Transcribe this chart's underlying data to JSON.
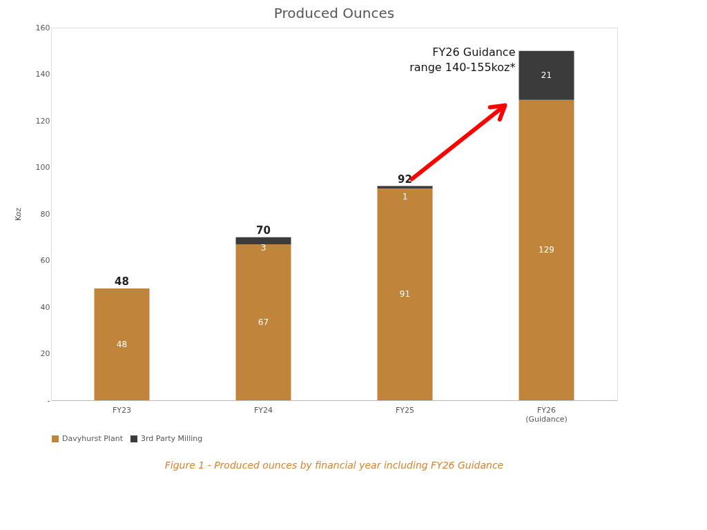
{
  "chart_data": {
    "type": "bar",
    "title": "Produced Ounces",
    "ylabel": "Koz",
    "stacked": true,
    "categories": [
      "FY23",
      "FY24",
      "FY25",
      "FY26 (Guidance)"
    ],
    "series": [
      {
        "name": "Davyhurst Plant",
        "color": "#c0843a",
        "values": [
          48,
          67,
          91,
          129
        ]
      },
      {
        "name": "3rd Party Milling",
        "color": "#3b3b3b",
        "values": [
          null,
          3,
          1,
          21
        ]
      }
    ],
    "data_labels": true,
    "totals": [
      "48",
      "70",
      "92",
      null
    ],
    "ylim": [
      0,
      160
    ],
    "yticks": [
      {
        "value": 0,
        "label": "-"
      },
      20,
      40,
      60,
      80,
      100,
      120,
      140,
      160
    ],
    "grid": false,
    "legend": "bottom",
    "annotations": [
      "FY26 Guidance\nrange 140-155koz*",
      "Figure 1 - Produced ounces by financial year including FY26 Guidance"
    ]
  }
}
